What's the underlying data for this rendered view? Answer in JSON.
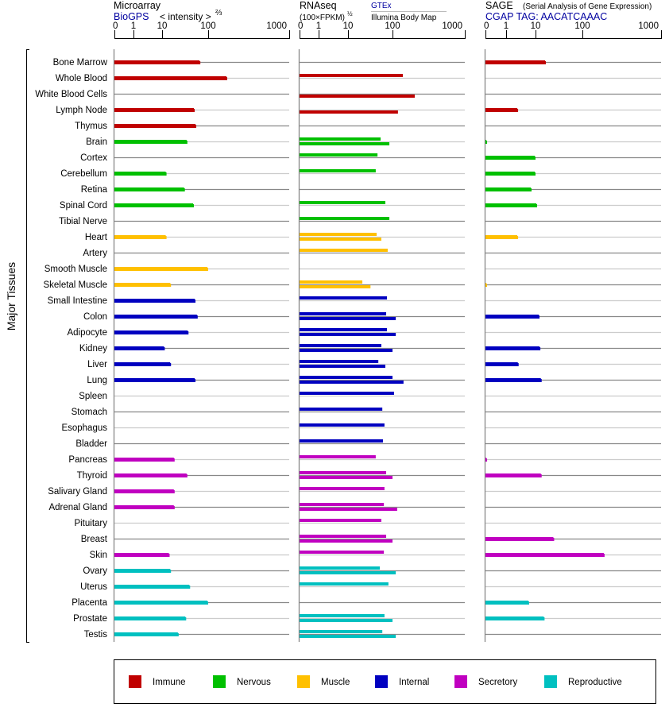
{
  "colors": {
    "immune": "#c00000",
    "nervous": "#00c000",
    "muscle": "#ffc000",
    "internal": "#0000c0",
    "secretory": "#c000c0",
    "reproductive": "#00c0c0",
    "link": "#0000a0",
    "grid_dark": "#888888",
    "grid_light": "#cccccc"
  },
  "headers": {
    "microarray": {
      "title": "Microarray",
      "source": "BioGPS",
      "scale_label": "< intensity >",
      "scale_exp": "⅔"
    },
    "rnaseq": {
      "title": "RNAseq",
      "scale_label": "(100×FPKM)",
      "scale_exp": "½",
      "source_top": "GTEx",
      "source_bottom": "Illumina Body Map"
    },
    "sage": {
      "title": "SAGE",
      "subtitle": "(Serial Analysis of Gene Expression)",
      "tag": "CGAP TAG: AACATCAAAC"
    }
  },
  "y_axis_label": "Major Tissues",
  "legend": [
    {
      "key": "immune",
      "label": "Immune"
    },
    {
      "key": "nervous",
      "label": "Nervous"
    },
    {
      "key": "muscle",
      "label": "Muscle"
    },
    {
      "key": "internal",
      "label": "Internal"
    },
    {
      "key": "secretory",
      "label": "Secretory"
    },
    {
      "key": "reproductive",
      "label": "Reproductive"
    }
  ],
  "chart_data": {
    "type": "bar",
    "orientation": "horizontal",
    "legend_position": "bottom",
    "x_ticks": [
      "0",
      "1",
      "10",
      "100",
      "1000"
    ],
    "x_tick_values": [
      0,
      1,
      10,
      100,
      1000
    ],
    "panels": [
      "Microarray (BioGPS)",
      "RNAseq GTEx",
      "RNAseq Illumina Body Map",
      "SAGE"
    ],
    "tissues": [
      {
        "name": "Bone Marrow",
        "group": "immune",
        "microarray": 65,
        "gtex": null,
        "illumina": null,
        "sage": 16
      },
      {
        "name": "Whole Blood",
        "group": "immune",
        "microarray": 168,
        "gtex": 139,
        "illumina": null,
        "sage": null
      },
      {
        "name": "White Blood Cells",
        "group": "immune",
        "microarray": null,
        "gtex": null,
        "illumina": 203,
        "sage": null
      },
      {
        "name": "Lymph Node",
        "group": "immune",
        "microarray": 49,
        "gtex": null,
        "illumina": 119,
        "sage": 2.4
      },
      {
        "name": "Thymus",
        "group": "immune",
        "microarray": 53,
        "gtex": null,
        "illumina": null,
        "sage": null
      },
      {
        "name": "Brain",
        "group": "nervous",
        "microarray": 34,
        "gtex": 54,
        "illumina": 85,
        "sage": 0.04
      },
      {
        "name": "Cortex",
        "group": "nervous",
        "microarray": null,
        "gtex": 46,
        "illumina": null,
        "sage": 9.4
      },
      {
        "name": "Cerebellum",
        "group": "nervous",
        "microarray": 12,
        "gtex": 42,
        "illumina": null,
        "sage": 9.4
      },
      {
        "name": "Retina",
        "group": "nervous",
        "microarray": 30,
        "gtex": null,
        "illumina": null,
        "sage": 6.9
      },
      {
        "name": "Spinal Cord",
        "group": "nervous",
        "microarray": 47,
        "gtex": 69,
        "illumina": null,
        "sage": 10.4
      },
      {
        "name": "Tibial Nerve",
        "group": "nervous",
        "microarray": null,
        "gtex": 85,
        "illumina": null,
        "sage": null
      },
      {
        "name": "Heart",
        "group": "muscle",
        "microarray": 12,
        "gtex": 44,
        "illumina": 56,
        "sage": 2.4
      },
      {
        "name": "Artery",
        "group": "muscle",
        "microarray": null,
        "gtex": 78,
        "illumina": null,
        "sage": null
      },
      {
        "name": "Smooth Muscle",
        "group": "muscle",
        "microarray": 96,
        "gtex": null,
        "illumina": null,
        "sage": null
      },
      {
        "name": "Skeletal Muscle",
        "group": "muscle",
        "microarray": 15,
        "gtex": 21,
        "illumina": 32,
        "sage": 0.04
      },
      {
        "name": "Small Intestine",
        "group": "internal",
        "microarray": 51,
        "gtex": 75,
        "illumina": null,
        "sage": null
      },
      {
        "name": "Colon",
        "group": "internal",
        "microarray": 57,
        "gtex": 72,
        "illumina": 111,
        "sage": 11.7
      },
      {
        "name": "Adipocyte",
        "group": "internal",
        "microarray": 36,
        "gtex": 75,
        "illumina": 111,
        "sage": null
      },
      {
        "name": "Kidney",
        "group": "internal",
        "microarray": 11,
        "gtex": 56,
        "illumina": 100,
        "sage": 12.2
      },
      {
        "name": "Liver",
        "group": "internal",
        "microarray": 15,
        "gtex": 48,
        "illumina": 69,
        "sage": 2.5
      },
      {
        "name": "Lung",
        "group": "internal",
        "microarray": 51,
        "gtex": 100,
        "illumina": 142,
        "sage": 13
      },
      {
        "name": "Spleen",
        "group": "internal",
        "microarray": null,
        "gtex": 105,
        "illumina": null,
        "sage": null
      },
      {
        "name": "Stomach",
        "group": "internal",
        "microarray": null,
        "gtex": 59,
        "illumina": null,
        "sage": null
      },
      {
        "name": "Esophagus",
        "group": "internal",
        "microarray": null,
        "gtex": 66,
        "illumina": null,
        "sage": null
      },
      {
        "name": "Bladder",
        "group": "internal",
        "microarray": null,
        "gtex": 61,
        "illumina": null,
        "sage": null
      },
      {
        "name": "Pancreas",
        "group": "secretory",
        "microarray": 18,
        "gtex": 42,
        "illumina": null,
        "sage": 0.04
      },
      {
        "name": "Thyroid",
        "group": "secretory",
        "microarray": 34,
        "gtex": 72,
        "illumina": 100,
        "sage": 13
      },
      {
        "name": "Salivary Gland",
        "group": "secretory",
        "microarray": 18,
        "gtex": 66,
        "illumina": null,
        "sage": null
      },
      {
        "name": "Adrenal Gland",
        "group": "secretory",
        "microarray": 18,
        "gtex": 64,
        "illumina": 116,
        "sage": null
      },
      {
        "name": "Pituitary",
        "group": "secretory",
        "microarray": null,
        "gtex": 56,
        "illumina": null,
        "sage": null
      },
      {
        "name": "Breast",
        "group": "secretory",
        "microarray": null,
        "gtex": 72,
        "illumina": 100,
        "sage": 24
      },
      {
        "name": "Skin",
        "group": "secretory",
        "microarray": 14,
        "gtex": 64,
        "illumina": null,
        "sage": 187
      },
      {
        "name": "Ovary",
        "group": "reproductive",
        "microarray": 15,
        "gtex": 52,
        "illumina": 111,
        "sage": null
      },
      {
        "name": "Uterus",
        "group": "reproductive",
        "microarray": 39,
        "gtex": 81,
        "illumina": null,
        "sage": null
      },
      {
        "name": "Placenta",
        "group": "reproductive",
        "microarray": 96,
        "gtex": null,
        "illumina": null,
        "sage": 5.7
      },
      {
        "name": "Prostate",
        "group": "reproductive",
        "microarray": 32,
        "gtex": 66,
        "illumina": 100,
        "sage": 15
      },
      {
        "name": "Testis",
        "group": "reproductive",
        "microarray": 22,
        "gtex": 59,
        "illumina": 111,
        "sage": null
      }
    ]
  }
}
